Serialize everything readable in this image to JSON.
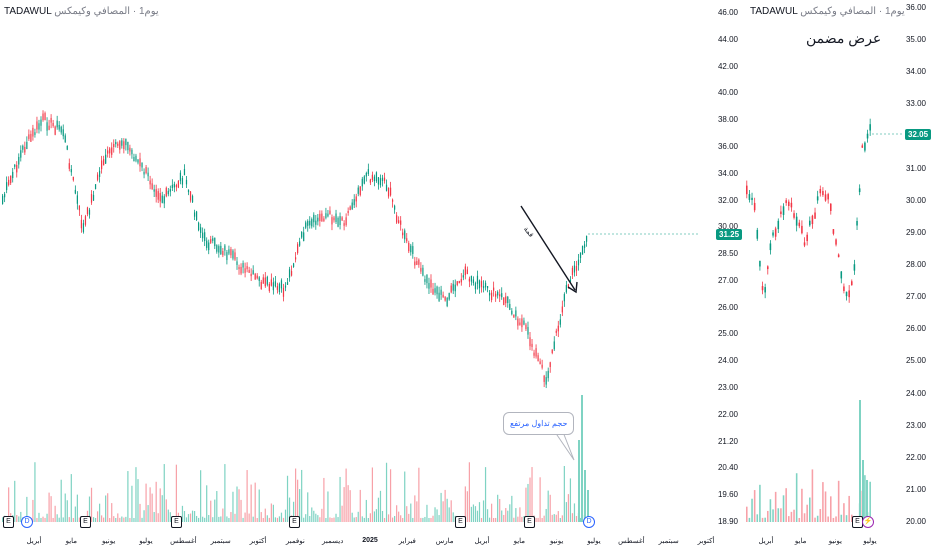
{
  "left": {
    "header": {
      "exchange": "TADAWUL",
      "sub": "يوم1 · المصافي وكيمكس"
    },
    "price_axis": [
      "46.00",
      "44.00",
      "42.00",
      "40.00",
      "38.00",
      "36.00",
      "34.00",
      "32.00",
      "30.00",
      "28.50",
      "27.00",
      "26.00",
      "25.00",
      "24.00",
      "23.00",
      "22.00",
      "21.20",
      "20.40",
      "19.60",
      "18.90"
    ],
    "last_price": "31.25",
    "time_axis": [
      "أبريل",
      "مايو",
      "يونيو",
      "يوليو",
      "أغسطس",
      "سبتمبر",
      "أكتوبر",
      "نوفمبر",
      "ديسمبر",
      "2025",
      "فبراير",
      "مارس",
      "أبريل",
      "مايو",
      "يونيو",
      "يوليو",
      "أغسطس",
      "سبتمبر",
      "أكتوبر"
    ],
    "annotation_trend": "قمة",
    "annotation_bubble": "حجم تداول مرتفع",
    "events": [
      "E",
      "D",
      "E",
      "E",
      "E",
      "E",
      "E",
      "D"
    ]
  },
  "right": {
    "header": {
      "exchange": "TADAWUL",
      "sub": "يوم1 · المصافي وكيمكس"
    },
    "title": "عرض مضمن",
    "price_axis": [
      "36.00",
      "35.00",
      "34.00",
      "33.00",
      "32.00",
      "31.00",
      "30.00",
      "29.00",
      "28.00",
      "27.00",
      "26.00",
      "25.00",
      "24.00",
      "23.00",
      "22.00",
      "21.00",
      "20.00"
    ],
    "last_price": "32.05",
    "time_axis": [
      "أبريل",
      "مايو",
      "يونيو",
      "يوليو"
    ],
    "events": [
      "E",
      "⚡"
    ]
  },
  "colors": {
    "up": "#089981",
    "down": "#f23645",
    "badge": "#089981",
    "vol_up": "#7fd3c3",
    "vol_down": "#f7a1a8"
  }
}
